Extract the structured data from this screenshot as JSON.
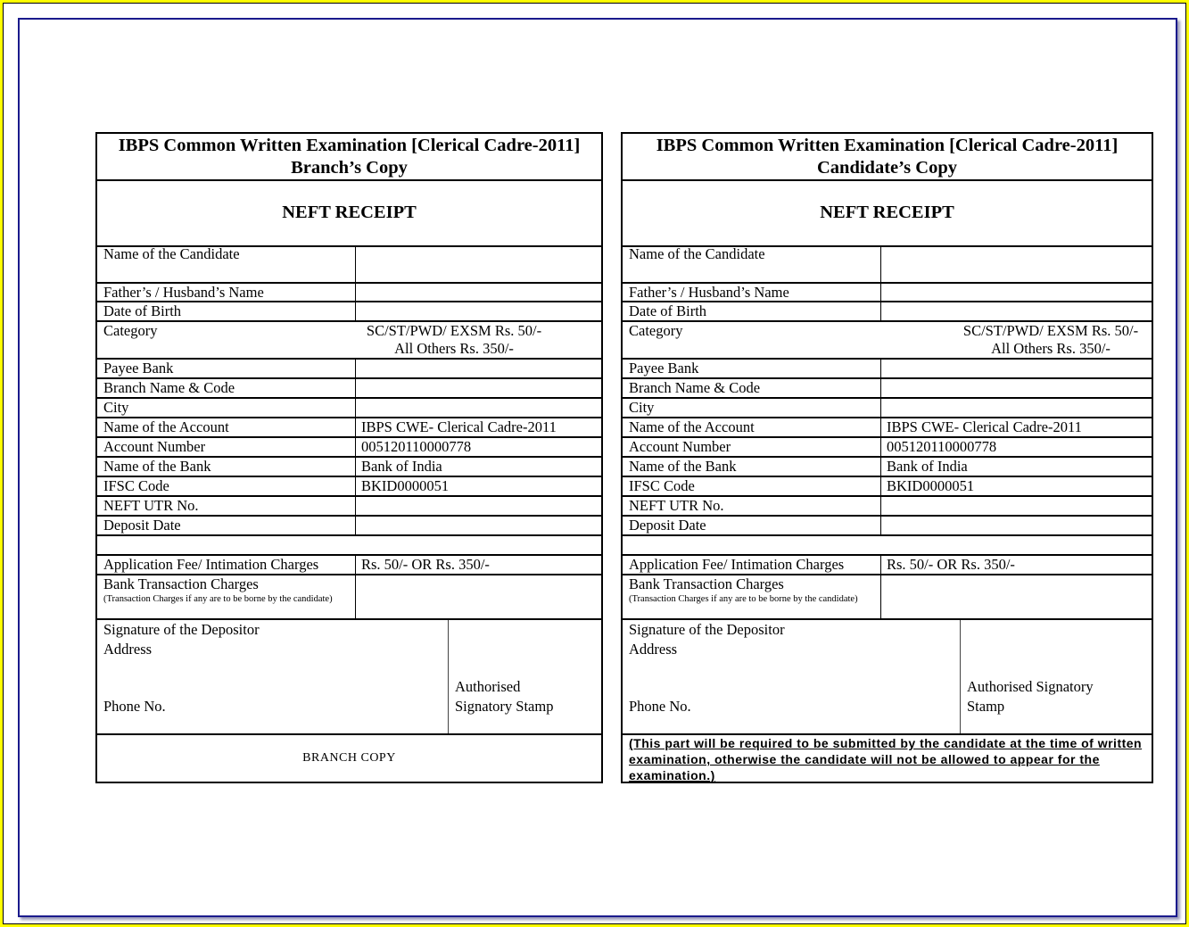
{
  "copies": [
    {
      "title": "IBPS Common Written Examination [Clerical Cadre-2011]",
      "subtitle": "Branch’s Copy",
      "receipt_title": "NEFT RECEIPT",
      "fields": [
        {
          "label": "Name of the Candidate",
          "value": ""
        },
        {
          "label": "Father’s / Husband’s Name",
          "value": ""
        },
        {
          "label": "Date of Birth",
          "value": ""
        },
        {
          "label": "Category",
          "value": "SC/ST/PWD/ EXSM Rs. 50/-",
          "value2": "All Others Rs. 350/-"
        },
        {
          "label": "Payee  Bank",
          "value": ""
        },
        {
          "label": "Branch Name & Code",
          "value": ""
        },
        {
          "label": "City",
          "value": ""
        },
        {
          "label": "Name of the Account",
          "value": "IBPS CWE- Clerical Cadre-2011"
        },
        {
          "label": "Account Number",
          "value": "005120110000778"
        },
        {
          "label": "Name of the Bank",
          "value": "Bank of India"
        },
        {
          "label": "IFSC Code",
          "value": "BKID0000051"
        },
        {
          "label": "NEFT UTR No.",
          "value": ""
        },
        {
          "label": "Deposit Date",
          "value": ""
        },
        {
          "label": "",
          "value": ""
        },
        {
          "label": "Application Fee/ Intimation Charges",
          "value": "Rs. 50/-   OR  Rs. 350/-"
        },
        {
          "label": "Bank Transaction Charges",
          "value": "",
          "note": "(Transaction Charges if any are to be borne by the candidate)"
        }
      ],
      "signature": {
        "depositor": "Signature of the Depositor",
        "address": "Address",
        "phone": "Phone No.",
        "stamp_line1": "Authorised",
        "stamp_line2": "Signatory Stamp"
      },
      "footer": "BRANCH COPY"
    },
    {
      "title": "IBPS Common Written Examination [Clerical Cadre-2011]",
      "subtitle": "Candidate’s Copy",
      "receipt_title": "NEFT RECEIPT",
      "fields": [
        {
          "label": "Name of the Candidate",
          "value": ""
        },
        {
          "label": "Father’s / Husband’s Name",
          "value": ""
        },
        {
          "label": "Date of Birth",
          "value": ""
        },
        {
          "label": "Category",
          "value": "SC/ST/PWD/ EXSM Rs. 50/-",
          "value2": "All Others Rs. 350/-"
        },
        {
          "label": "Payee Bank",
          "value": ""
        },
        {
          "label": "Branch Name & Code",
          "value": ""
        },
        {
          "label": "City",
          "value": ""
        },
        {
          "label": "Name of the Account",
          "value": "IBPS CWE- Clerical Cadre-2011"
        },
        {
          "label": "Account Number",
          "value": "005120110000778"
        },
        {
          "label": "Name of the Bank",
          "value": "Bank of India"
        },
        {
          "label": "IFSC Code",
          "value": "BKID0000051"
        },
        {
          "label": "NEFT UTR No.",
          "value": ""
        },
        {
          "label": "Deposit Date",
          "value": ""
        },
        {
          "label": "",
          "value": ""
        },
        {
          "label": "Application Fee/ Intimation Charges",
          "value": "Rs. 50/-   OR  Rs. 350/-"
        },
        {
          "label": "Bank Transaction Charges",
          "value": "",
          "note": "(Transaction Charges if any are to be borne by the candidate)"
        }
      ],
      "signature": {
        "depositor": "Signature of the Depositor",
        "address": "Address",
        "phone": "Phone No.",
        "stamp_line1": "Authorised Signatory",
        "stamp_line2": "Stamp"
      },
      "footer": "(This part will be required to be submitted by the candidate at the time of written examination, otherwise the candidate will not be  allowed to appear for the examination.)"
    }
  ]
}
